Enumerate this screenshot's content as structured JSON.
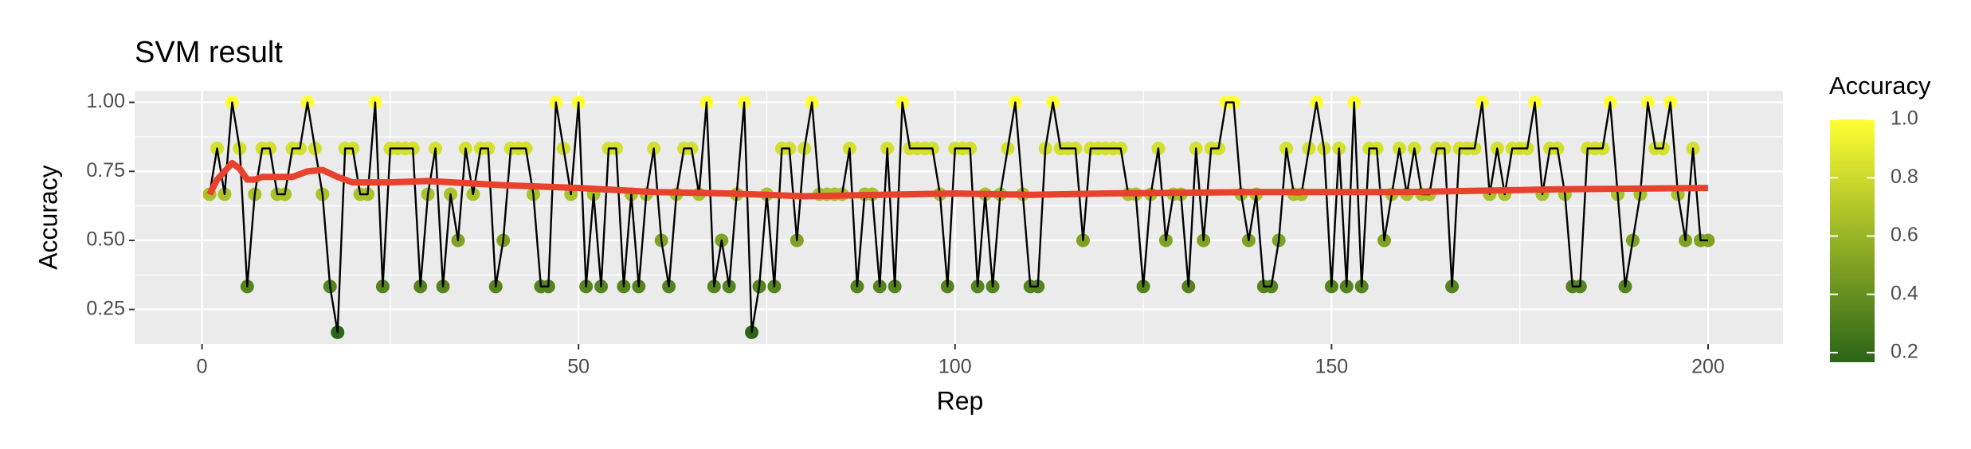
{
  "chart_data": {
    "type": "line",
    "title": "SVM result",
    "x_label": "Rep",
    "y_label": "Accuracy",
    "x": [
      1,
      2,
      3,
      4,
      5,
      6,
      7,
      8,
      9,
      10,
      11,
      12,
      13,
      14,
      15,
      16,
      17,
      18,
      19,
      20,
      21,
      22,
      23,
      24,
      25,
      26,
      27,
      28,
      29,
      30,
      31,
      32,
      33,
      34,
      35,
      36,
      37,
      38,
      39,
      40,
      41,
      42,
      43,
      44,
      45,
      46,
      47,
      48,
      49,
      50,
      51,
      52,
      53,
      54,
      55,
      56,
      57,
      58,
      59,
      60,
      61,
      62,
      63,
      64,
      65,
      66,
      67,
      68,
      69,
      70,
      71,
      72,
      73,
      74,
      75,
      76,
      77,
      78,
      79,
      80,
      81,
      82,
      83,
      84,
      85,
      86,
      87,
      88,
      89,
      90,
      91,
      92,
      93,
      94,
      95,
      96,
      97,
      98,
      99,
      100,
      101,
      102,
      103,
      104,
      105,
      106,
      107,
      108,
      109,
      110,
      111,
      112,
      113,
      114,
      115,
      116,
      117,
      118,
      119,
      120,
      121,
      122,
      123,
      124,
      125,
      126,
      127,
      128,
      129,
      130,
      131,
      132,
      133,
      134,
      135,
      136,
      137,
      138,
      139,
      140,
      141,
      142,
      143,
      144,
      145,
      146,
      147,
      148,
      149,
      150,
      151,
      152,
      153,
      154,
      155,
      156,
      157,
      158,
      159,
      160,
      161,
      162,
      163,
      164,
      165,
      166,
      167,
      168,
      169,
      170,
      171,
      172,
      173,
      174,
      175,
      176,
      177,
      178,
      179,
      180,
      181,
      182,
      183,
      184,
      185,
      186,
      187,
      188,
      189,
      190,
      191,
      192,
      193,
      194,
      195,
      196,
      197,
      198,
      199,
      200
    ],
    "series": [
      {
        "color": "#000000",
        "color_by": "colorbar",
        "values": [
          0.667,
          0.833,
          0.667,
          1,
          0.833,
          0.333,
          0.667,
          0.833,
          0.833,
          0.667,
          0.667,
          0.833,
          0.833,
          1,
          0.833,
          0.667,
          0.333,
          0.167,
          0.833,
          0.833,
          0.667,
          0.667,
          1,
          0.333,
          0.833,
          0.833,
          0.833,
          0.833,
          0.333,
          0.667,
          0.833,
          0.333,
          0.667,
          0.5,
          0.833,
          0.667,
          0.833,
          0.833,
          0.333,
          0.5,
          0.833,
          0.833,
          0.833,
          0.667,
          0.333,
          0.333,
          1,
          0.833,
          0.667,
          1,
          0.333,
          0.667,
          0.333,
          0.833,
          0.833,
          0.333,
          0.667,
          0.333,
          0.667,
          0.833,
          0.5,
          0.333,
          0.667,
          0.833,
          0.833,
          0.667,
          1,
          0.333,
          0.5,
          0.333,
          0.667,
          1,
          0.167,
          0.333,
          0.667,
          0.333,
          0.833,
          0.833,
          0.5,
          0.833,
          1,
          0.667,
          0.667,
          0.667,
          0.667,
          0.833,
          0.333,
          0.667,
          0.667,
          0.333,
          0.833,
          0.333,
          1,
          0.833,
          0.833,
          0.833,
          0.833,
          0.667,
          0.333,
          0.833,
          0.833,
          0.833,
          0.333,
          0.667,
          0.333,
          0.667,
          0.833,
          1,
          0.667,
          0.333,
          0.333,
          0.833,
          1,
          0.833,
          0.833,
          0.833,
          0.5,
          0.833,
          0.833,
          0.833,
          0.833,
          0.833,
          0.667,
          0.667,
          0.333,
          0.667,
          0.833,
          0.5,
          0.667,
          0.667,
          0.333,
          0.833,
          0.5,
          0.833,
          0.833,
          1,
          1,
          0.667,
          0.5,
          0.667,
          0.333,
          0.333,
          0.5,
          0.833,
          0.667,
          0.667,
          0.833,
          1,
          0.833,
          0.333,
          0.833,
          0.333,
          1,
          0.333,
          0.833,
          0.833,
          0.5,
          0.667,
          0.833,
          0.667,
          0.833,
          0.667,
          0.667,
          0.833,
          0.833,
          0.333,
          0.833,
          0.833,
          0.833,
          1,
          0.667,
          0.833,
          0.667,
          0.833,
          0.833,
          0.833,
          1,
          0.667,
          0.833,
          0.833,
          0.667,
          0.333,
          0.333,
          0.833,
          0.833,
          0.833,
          1,
          0.667,
          0.333,
          0.5,
          0.667,
          1,
          0.833,
          0.833,
          1,
          0.667,
          0.5,
          0.833,
          0.5,
          0.5
        ]
      },
      {
        "color": "#e8412c",
        "x": [
          1,
          2,
          3,
          4,
          5,
          6,
          7,
          8,
          10,
          12,
          14,
          16,
          18,
          20,
          25,
          30,
          40,
          50,
          60,
          70,
          80,
          90,
          100,
          110,
          120,
          140,
          160,
          170,
          180,
          200
        ],
        "values": [
          0.667,
          0.72,
          0.75,
          0.78,
          0.76,
          0.72,
          0.72,
          0.73,
          0.73,
          0.73,
          0.75,
          0.755,
          0.73,
          0.71,
          0.71,
          0.715,
          0.7,
          0.69,
          0.675,
          0.67,
          0.66,
          0.665,
          0.67,
          0.665,
          0.67,
          0.675,
          0.675,
          0.68,
          0.685,
          0.69
        ]
      }
    ],
    "xlim": [
      -8.95,
      209.95
    ],
    "xticks": [
      0,
      50,
      100,
      150,
      200
    ],
    "ylim": [
      0.125,
      1.042
    ],
    "yticks": [
      0.25,
      {
        "value": 0.5,
        "label": "0.50"
      },
      0.75,
      {
        "value": 1,
        "label": "1.00"
      }
    ],
    "grid": true,
    "colorbar": {
      "title": "Accuracy",
      "low": "#2b6418",
      "high": "#ffff33",
      "lim": [
        0.167,
        1
      ],
      "ticks": [
        0.2,
        0.4,
        0.6,
        0.8,
        {
          "value": 1,
          "label": "1.0"
        }
      ]
    }
  }
}
